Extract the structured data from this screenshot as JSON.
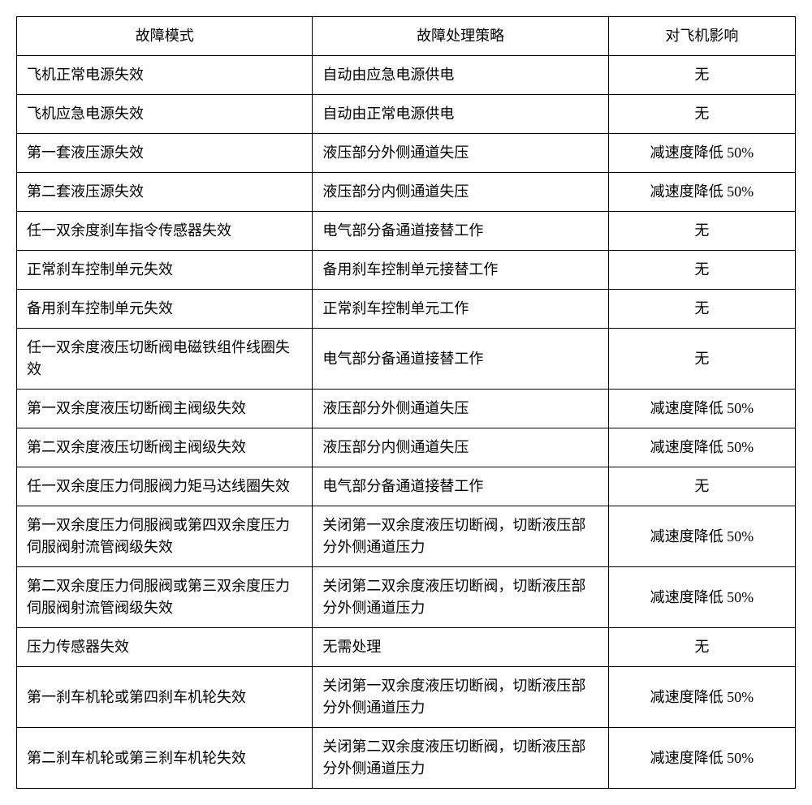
{
  "table": {
    "columns": [
      "故障模式",
      "故障处理策略",
      "对飞机影响"
    ],
    "rows": [
      {
        "mode": "飞机正常电源失效",
        "strategy": "自动由应急电源供电",
        "impact": "无"
      },
      {
        "mode": "飞机应急电源失效",
        "strategy": "自动由正常电源供电",
        "impact": "无"
      },
      {
        "mode": "第一套液压源失效",
        "strategy": "液压部分外侧通道失压",
        "impact": "减速度降低 50%"
      },
      {
        "mode": "第二套液压源失效",
        "strategy": "液压部分内侧通道失压",
        "impact": "减速度降低 50%"
      },
      {
        "mode": "任一双余度刹车指令传感器失效",
        "strategy": "电气部分备通道接替工作",
        "impact": "无"
      },
      {
        "mode": "正常刹车控制单元失效",
        "strategy": "备用刹车控制单元接替工作",
        "impact": "无"
      },
      {
        "mode": "备用刹车控制单元失效",
        "strategy": "正常刹车控制单元工作",
        "impact": "无"
      },
      {
        "mode": "任一双余度液压切断阀电磁铁组件线圈失效",
        "strategy": "电气部分备通道接替工作",
        "impact": "无"
      },
      {
        "mode": "第一双余度液压切断阀主阀级失效",
        "strategy": "液压部分外侧通道失压",
        "impact": "减速度降低 50%"
      },
      {
        "mode": "第二双余度液压切断阀主阀级失效",
        "strategy": "液压部分内侧通道失压",
        "impact": "减速度降低 50%"
      },
      {
        "mode": "任一双余度压力伺服阀力矩马达线圈失效",
        "strategy": "电气部分备通道接替工作",
        "impact": "无"
      },
      {
        "mode": "第一双余度压力伺服阀或第四双余度压力伺服阀射流管阀级失效",
        "strategy": "关闭第一双余度液压切断阀，切断液压部分外侧通道压力",
        "impact": "减速度降低 50%"
      },
      {
        "mode": "第二双余度压力伺服阀或第三双余度压力伺服阀射流管阀级失效",
        "strategy": "关闭第二双余度液压切断阀，切断液压部分外侧通道压力",
        "impact": "减速度降低 50%"
      },
      {
        "mode": "压力传感器失效",
        "strategy": "无需处理",
        "impact": "无"
      },
      {
        "mode": "第一刹车机轮或第四刹车机轮失效",
        "strategy": "关闭第一双余度液压切断阀，切断液压部分外侧通道压力",
        "impact": "减速度降低 50%"
      },
      {
        "mode": "第二刹车机轮或第三刹车机轮失效",
        "strategy": "关闭第二双余度液压切断阀，切断液压部分外侧通道压力",
        "impact": "减速度降低 50%"
      }
    ],
    "styling": {
      "border_color": "#000000",
      "background_color": "#ffffff",
      "text_color": "#000000",
      "font_size": 18,
      "font_family": "SimSun",
      "cell_padding": "10px 12px",
      "column_widths": [
        "38%",
        "38%",
        "24%"
      ],
      "header_align": "center",
      "mode_align": "left",
      "strategy_align": "left",
      "impact_align": "center"
    }
  }
}
